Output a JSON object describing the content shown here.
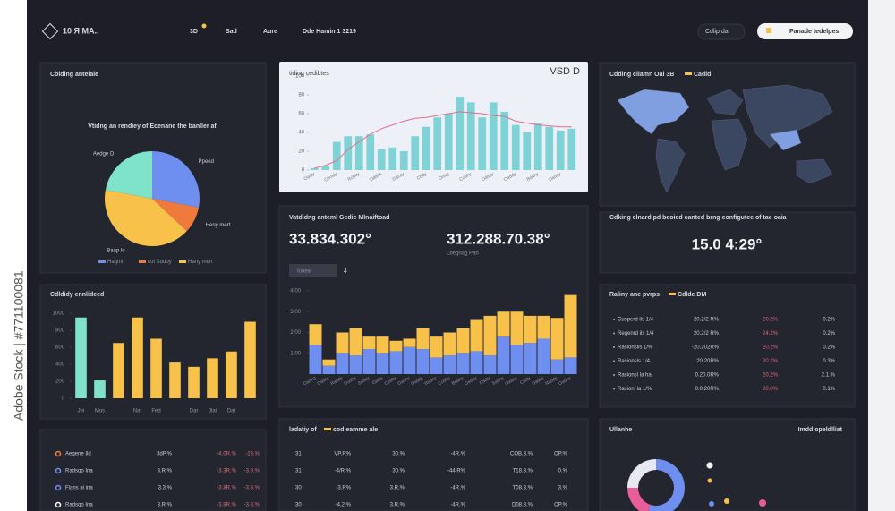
{
  "watermark": "Adobe Stock | #771100081",
  "header": {
    "logo": "10 Я MA..",
    "nav": [
      "3D",
      "Sad",
      "Aure",
      "Dde Hamin 1 3219"
    ],
    "search": "Cdlip da",
    "button": "Panade tedelpes"
  },
  "map": {
    "title": "Cdding cliamn Oal 3B",
    "legend": "Cadid"
  },
  "kpis": {
    "title": "Vatdidng anteml Gedie Mlnaiftoad",
    "value1": "33.834.302°",
    "value2": "312.288.70.38°",
    "caption2": "Lbeqnag Pan",
    "tab": "Ioaea",
    "tab2": "4"
  },
  "clock": {
    "title": "Cdking clnard pd beoied canted brng eonfigutee of tae oaia",
    "value": "15.0 4:29°"
  },
  "table_g": {
    "title": "Raliny ane pvrps",
    "badge": "Cdlde DM",
    "rows": [
      [
        "Cusperd ils 1/4",
        "20.2/2 R%",
        "20.2%",
        "0.2%"
      ],
      [
        "Regenrd ils 1/4",
        "20.2/2 R%",
        "24.2%",
        "0.2%"
      ],
      [
        "Rasionslis 1/%",
        "-20.202R%",
        "20.2%",
        "0.2%"
      ],
      [
        "Rasionsls 1/4",
        "20.20R%",
        "20.2%",
        "0.3%"
      ],
      [
        "Rasionsl la ha",
        "0.20.0R%",
        "20.2%",
        "2.1.%"
      ],
      [
        "Rasionl la 1/%",
        "0.0.20R%",
        "20.0%",
        "0.1%"
      ]
    ]
  },
  "table_h": {
    "rows": [
      [
        "Aegene Ild",
        "3dP.%",
        "-4.0R.%",
        "-23.%"
      ],
      [
        "Radsgo Ina",
        "3.R.%",
        "-3.3R.%",
        "-3.9.%"
      ],
      [
        "Flans ai ina",
        "3.3.%",
        "-3.8R.%",
        "-3.3.%"
      ],
      [
        "Radsgo Ina",
        "3.R.%",
        "-3.8R.%",
        "-3.3.%"
      ]
    ]
  },
  "table_i": {
    "title": "ladatiy of",
    "badge": "cod eamme ale",
    "rows": [
      [
        "31",
        "VP.R%",
        "30.%",
        "-4R.%",
        "COB.3.%",
        "OP.%"
      ],
      [
        "31",
        "-4/R.%",
        "30.%",
        "-44.R%",
        "T18.3.%",
        "0.%"
      ],
      [
        "30",
        "-3.R%",
        "3.R.%",
        "-4R.%",
        "T08.3.%",
        "3.%"
      ],
      [
        "30",
        "-4.2.%",
        "3.R.%",
        "-4R.%",
        "D08.3.%",
        "OP.%"
      ]
    ]
  },
  "panel_j": {
    "title": "Ullanhe",
    "subtitle": "Imdd opeldlliat"
  },
  "chart_data": [
    {
      "type": "pie",
      "title": "Cblding anteiale",
      "subtitle": "Vtidng an rendiey of Ecenane the banller af",
      "categories": [
        "Ppeed",
        "Heny mert",
        "Baap lo",
        "Aedge D"
      ],
      "values": [
        28,
        9,
        41,
        22
      ],
      "colors": [
        "#6f8ff0",
        "#f07a3c",
        "#f8c24a",
        "#7ee3c8"
      ],
      "legend": [
        "Hagmi",
        "cot Sddoy",
        "Hany mert"
      ]
    },
    {
      "type": "bar_line",
      "title": "tiding cedibtes",
      "annotation": "VSD D",
      "categories": [
        "Oadiy",
        null,
        "Cbnaly",
        null,
        "Rcbby",
        null,
        "Oddhs",
        null,
        "Ddcay",
        null,
        "Cbdy",
        null,
        "Onag",
        null,
        "Codhy",
        null,
        "Odday",
        null,
        "Oaddy",
        null,
        "Bddhy",
        null,
        "Oaday",
        null
      ],
      "series": [
        {
          "color": "#7fd3d6",
          "values": [
            2,
            4,
            30,
            36,
            36,
            38,
            22,
            24,
            20,
            36,
            46,
            56,
            60,
            78,
            72,
            56,
            72,
            62,
            48,
            40,
            50,
            46,
            42,
            44
          ]
        },
        {
          "color": "#e07088",
          "values": [
            2,
            5,
            10,
            22,
            30,
            38,
            44,
            48,
            52,
            55,
            56,
            58,
            60,
            62,
            61,
            60,
            58,
            57,
            52,
            50,
            48,
            47,
            46,
            46
          ]
        }
      ],
      "ylim": [
        0,
        100
      ],
      "yticks": [
        0,
        20,
        40,
        60,
        80,
        100
      ]
    },
    {
      "type": "stacked_bar",
      "categories": [
        "Oadng",
        "Dadny",
        "Raddy",
        "Oudhy",
        "Saday",
        "Oadly",
        "Cadby",
        "Dadny",
        "Oaddy",
        "Radny",
        "Codhy",
        "Bodny",
        "Oaday",
        "Dadty",
        "Sadhy",
        "Oaany",
        "Cadly",
        "Dadhy",
        "Raddy",
        "Oadny"
      ],
      "series": [
        {
          "color": "#6f8ff0",
          "values": [
            1.4,
            0.4,
            1.0,
            0.9,
            1.2,
            1.0,
            1.1,
            1.3,
            1.2,
            0.8,
            0.9,
            1.0,
            1.1,
            0.9,
            1.8,
            1.4,
            1.5,
            1.7,
            0.7,
            0.8
          ]
        },
        {
          "color": "#f8c24a",
          "values": [
            1.0,
            0.3,
            1.0,
            1.3,
            0.6,
            0.8,
            0.5,
            0.4,
            1.0,
            1.0,
            1.1,
            1.2,
            1.5,
            1.9,
            1.2,
            1.6,
            1.3,
            1.1,
            2.0,
            3.0
          ]
        }
      ],
      "ylim": [
        0,
        4
      ],
      "yticks": [
        {
          "value": 1,
          "label": "1.00"
        },
        {
          "value": 2,
          "label": "2.00"
        },
        {
          "value": 3,
          "label": "3.00"
        },
        {
          "value": 4,
          "label": "4.00"
        }
      ]
    },
    {
      "type": "bar",
      "title": "Cdldidy ennlideed",
      "categories": [
        "Jei",
        "Mos",
        null,
        "Nat",
        "Fed",
        null,
        "Dar",
        "Jlai",
        "Dat",
        null
      ],
      "values": [
        950,
        210,
        650,
        950,
        700,
        420,
        370,
        470,
        550,
        900
      ],
      "colors": [
        "#7ee3c8",
        "#7ee3c8",
        "#f8c24a",
        "#f8c24a",
        "#f8c24a",
        "#f8c24a",
        "#f8c24a",
        "#f8c24a",
        "#f8c24a",
        "#f8c24a"
      ],
      "ylim": [
        0,
        1000
      ],
      "yticks": [
        0,
        200,
        400,
        600,
        800,
        1000
      ]
    },
    {
      "type": "donut",
      "values": [
        55,
        20,
        25
      ],
      "colors": [
        "#6f8ff0",
        "#e85d9a",
        "#e8e8f0"
      ]
    }
  ]
}
